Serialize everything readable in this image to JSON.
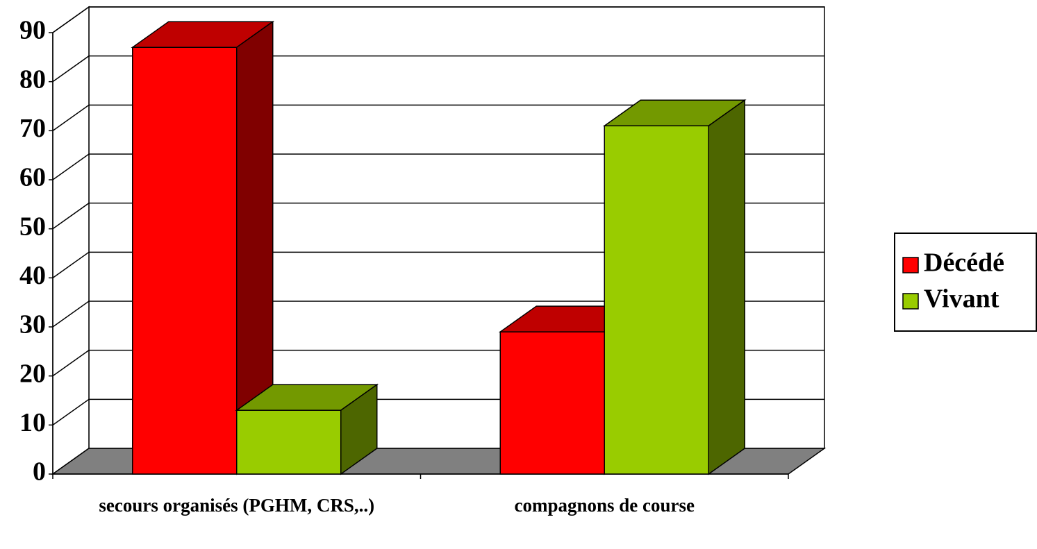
{
  "chart_data": {
    "type": "bar3d",
    "categories": [
      "secours organisés (PGHM, CRS,..)",
      "compagnons de course"
    ],
    "series": [
      {
        "name": "Décédé",
        "color": "#ff0000",
        "values": [
          87,
          29
        ]
      },
      {
        "name": "Vivant",
        "color": "#99cc00",
        "values": [
          13,
          71
        ]
      }
    ],
    "ylim": [
      0,
      90
    ],
    "yticks": [
      0,
      10,
      20,
      30,
      40,
      50,
      60,
      70,
      80,
      90
    ],
    "grid": true,
    "legend": "right"
  }
}
